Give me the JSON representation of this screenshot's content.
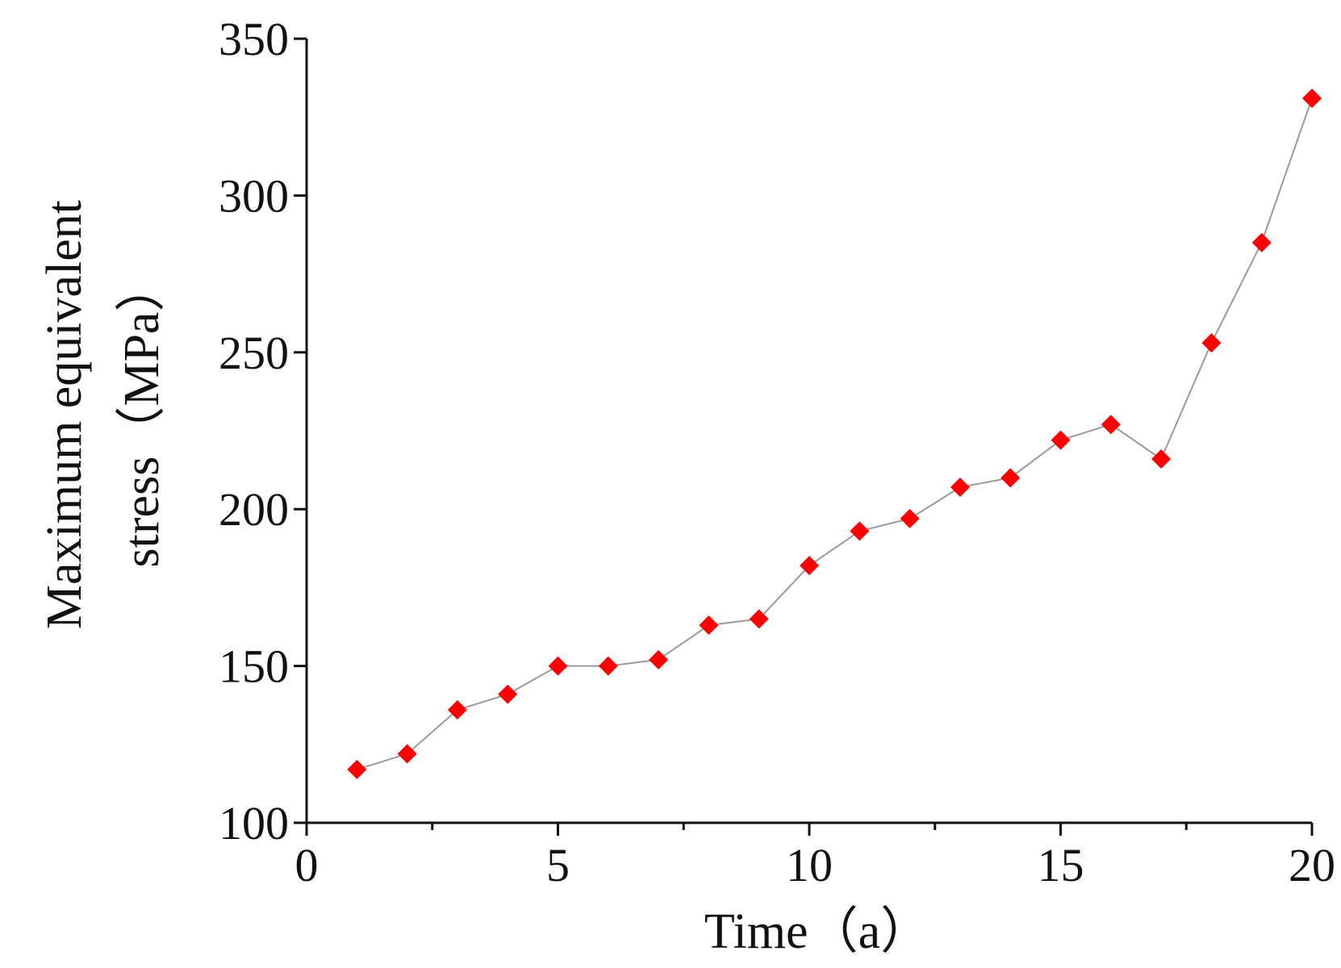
{
  "chart_data": {
    "type": "line",
    "title": "",
    "xlabel": "Time（a）",
    "ylabel_lines": [
      "Maximum equivalent",
      "stress（MPa）"
    ],
    "xlim": [
      0,
      20
    ],
    "ylim": [
      100,
      350
    ],
    "x_ticks": [
      0,
      5,
      10,
      15,
      20
    ],
    "x_minor_step": 2.5,
    "y_ticks": [
      100,
      150,
      200,
      250,
      300,
      350
    ],
    "grid": false,
    "legend": "none",
    "series": [
      {
        "color": "#ff0000",
        "line_color": "#9a9a9a",
        "marker": "diamond",
        "x": [
          1,
          2,
          3,
          4,
          5,
          6,
          7,
          8,
          9,
          10,
          11,
          12,
          13,
          14,
          15,
          16,
          17,
          18,
          19,
          20
        ],
        "y": [
          117,
          122,
          136,
          141,
          150,
          150,
          152,
          163,
          165,
          182,
          193,
          197,
          207,
          210,
          222,
          227,
          216,
          253,
          285,
          331
        ]
      }
    ]
  }
}
